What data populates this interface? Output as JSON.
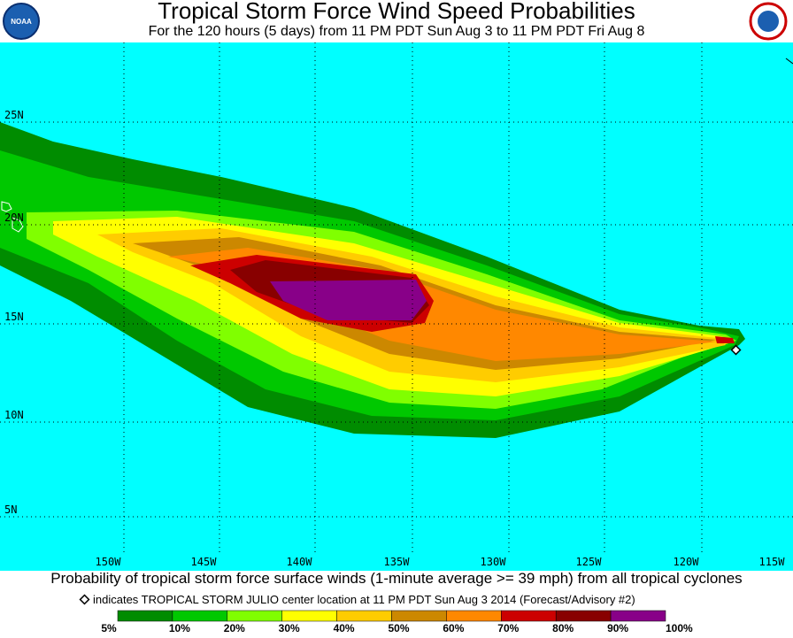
{
  "header": {
    "title": "Tropical Storm Force Wind Speed Probabilities",
    "subtitle": "For the 120 hours (5 days) from 11 PM PDT Sun Aug 3 to 11 PM PDT Fri Aug 8",
    "logo_left": "NOAA"
  },
  "map": {
    "lat_labels": [
      "25N",
      "20N",
      "15N",
      "10N",
      "5N"
    ],
    "lon_labels": [
      "150W",
      "145W",
      "140W",
      "135W",
      "130W",
      "125W",
      "120W",
      "115W"
    ]
  },
  "caption": "Probability of tropical storm force surface winds (1-minute average >= 39 mph) from all tropical cyclones",
  "note": "indicates TROPICAL STORM JULIO center location at 11 PM PDT Sun Aug 3 2014 (Forecast/Advisory #2)",
  "legend": {
    "labels": [
      "5%",
      "10%",
      "20%",
      "30%",
      "40%",
      "50%",
      "60%",
      "70%",
      "80%",
      "90%",
      "100%"
    ]
  }
}
